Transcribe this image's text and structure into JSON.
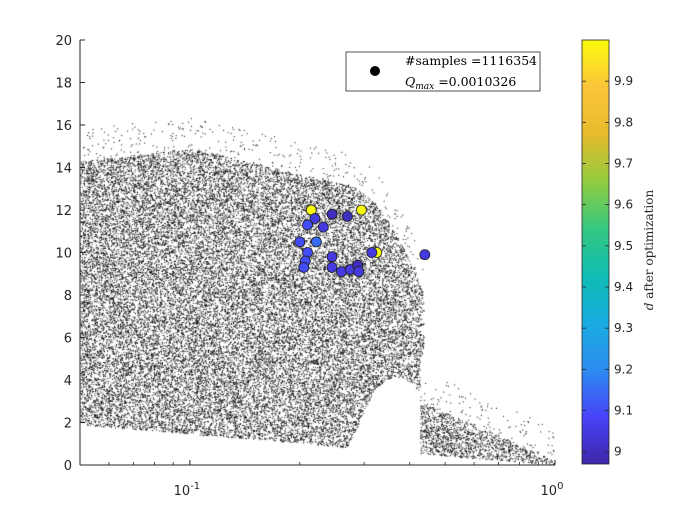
{
  "chart_data": {
    "type": "scatter",
    "xscale": "log",
    "xlim": [
      0.05,
      1.0
    ],
    "ylim": [
      0,
      20
    ],
    "x_ticks": [
      {
        "value": 0.1,
        "base": "10",
        "exp": "-1"
      },
      {
        "value": 1.0,
        "base": "10",
        "exp": "0"
      }
    ],
    "y_ticks": [
      "0",
      "2",
      "4",
      "6",
      "8",
      "10",
      "12",
      "14",
      "16",
      "18",
      "20"
    ],
    "legend": {
      "placement": "top-right",
      "samples_label": "#samples =1116354",
      "qmax_prefix": "Q",
      "qmax_sub": "max",
      "qmax_value": " =0.0010326"
    },
    "colorbar": {
      "label_italic": "d",
      "label_rest": " after optimization",
      "range": [
        8.97,
        10.0
      ],
      "ticks": [
        "9",
        "9.1",
        "9.2",
        "9.3",
        "9.4",
        "9.5",
        "9.6",
        "9.7",
        "9.8",
        "9.9"
      ],
      "colormap": [
        "#3e26a8",
        "#4743f8",
        "#2d8cf0",
        "#19ace0",
        "#0ebdb3",
        "#35c880",
        "#92cc3e",
        "#e6bb2c",
        "#fcc43a",
        "#f9fb0e"
      ]
    },
    "sample_cloud": {
      "description_color": "#000000",
      "count_shown": 1116354
    },
    "optimized_points": [
      {
        "x": 0.215,
        "y": 12.0,
        "d": 10.0
      },
      {
        "x": 0.295,
        "y": 12.0,
        "d": 10.0
      },
      {
        "x": 0.325,
        "y": 10.0,
        "d": 10.0
      },
      {
        "x": 0.245,
        "y": 11.8,
        "d": 9.0
      },
      {
        "x": 0.27,
        "y": 11.7,
        "d": 9.0
      },
      {
        "x": 0.22,
        "y": 11.6,
        "d": 9.05
      },
      {
        "x": 0.21,
        "y": 11.3,
        "d": 9.1
      },
      {
        "x": 0.232,
        "y": 11.2,
        "d": 9.05
      },
      {
        "x": 0.2,
        "y": 10.5,
        "d": 9.1
      },
      {
        "x": 0.222,
        "y": 10.5,
        "d": 9.15
      },
      {
        "x": 0.21,
        "y": 10.0,
        "d": 9.1
      },
      {
        "x": 0.207,
        "y": 9.6,
        "d": 9.1
      },
      {
        "x": 0.205,
        "y": 9.3,
        "d": 9.1
      },
      {
        "x": 0.245,
        "y": 9.8,
        "d": 9.05
      },
      {
        "x": 0.245,
        "y": 9.3,
        "d": 9.05
      },
      {
        "x": 0.26,
        "y": 9.1,
        "d": 9.05
      },
      {
        "x": 0.275,
        "y": 9.2,
        "d": 9.05
      },
      {
        "x": 0.288,
        "y": 9.4,
        "d": 9.0
      },
      {
        "x": 0.29,
        "y": 9.1,
        "d": 9.05
      },
      {
        "x": 0.315,
        "y": 10.0,
        "d": 9.05
      },
      {
        "x": 0.44,
        "y": 9.9,
        "d": 9.05
      }
    ]
  }
}
